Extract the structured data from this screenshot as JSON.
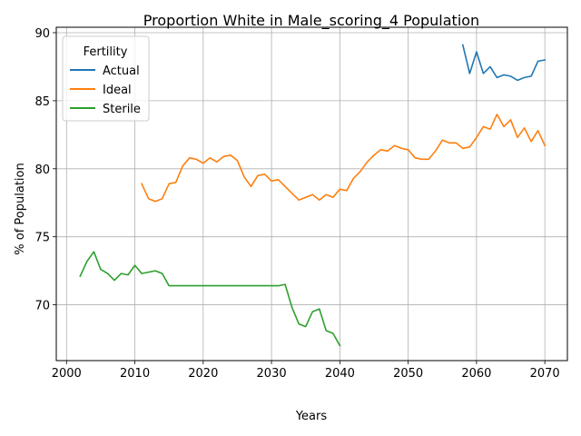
{
  "chart_data": {
    "type": "line",
    "title": "Proportion White in Male_scoring_4 Population",
    "xlabel": "Years",
    "ylabel": "% of Population",
    "xlim": [
      1998.5,
      2073.3
    ],
    "ylim": [
      65.9,
      90.4
    ],
    "x_ticks": [
      2000,
      2010,
      2020,
      2030,
      2040,
      2050,
      2060,
      2070
    ],
    "y_ticks": [
      70,
      75,
      80,
      85,
      90
    ],
    "grid": true,
    "legend": {
      "title": "Fertility",
      "position": "upper-left"
    },
    "series": [
      {
        "name": "Actual",
        "color": "#1f77b4",
        "x": [
          2058,
          2059,
          2060,
          2061,
          2062,
          2063,
          2064,
          2065,
          2066,
          2067,
          2068,
          2069,
          2070
        ],
        "y": [
          89.1,
          87.0,
          88.6,
          87.0,
          87.5,
          86.7,
          86.9,
          86.8,
          86.5,
          86.7,
          86.8,
          87.9,
          88.0
        ]
      },
      {
        "name": "Ideal",
        "color": "#ff7f0e",
        "x": [
          2011,
          2012,
          2013,
          2014,
          2015,
          2016,
          2017,
          2018,
          2019,
          2020,
          2021,
          2022,
          2023,
          2024,
          2025,
          2026,
          2027,
          2028,
          2029,
          2030,
          2031,
          2032,
          2033,
          2034,
          2035,
          2036,
          2037,
          2038,
          2039,
          2040,
          2041,
          2042,
          2043,
          2044,
          2045,
          2046,
          2047,
          2048,
          2049,
          2050,
          2051,
          2052,
          2053,
          2054,
          2055,
          2056,
          2057,
          2058,
          2059,
          2060,
          2061,
          2062,
          2063,
          2064,
          2065,
          2066,
          2067,
          2068,
          2069,
          2070
        ],
        "y": [
          78.9,
          77.8,
          77.6,
          77.8,
          78.9,
          79.0,
          80.2,
          80.8,
          80.7,
          80.4,
          80.8,
          80.5,
          80.9,
          81.0,
          80.6,
          79.4,
          78.7,
          79.5,
          79.6,
          79.1,
          79.2,
          78.7,
          78.2,
          77.7,
          77.9,
          78.1,
          77.7,
          78.1,
          77.9,
          78.5,
          78.4,
          79.3,
          79.8,
          80.5,
          81.0,
          81.4,
          81.3,
          81.7,
          81.5,
          81.4,
          80.8,
          80.7,
          80.7,
          81.3,
          82.1,
          81.9,
          81.9,
          81.5,
          81.6,
          82.3,
          83.1,
          82.9,
          84.0,
          83.1,
          83.6,
          82.3,
          83.0,
          82.0,
          82.8,
          81.7
        ]
      },
      {
        "name": "Sterile",
        "color": "#2ca02c",
        "x": [
          2002,
          2003,
          2004,
          2005,
          2006,
          2007,
          2008,
          2009,
          2010,
          2011,
          2012,
          2013,
          2014,
          2015,
          2016,
          2017,
          2018,
          2019,
          2020,
          2021,
          2022,
          2023,
          2024,
          2025,
          2026,
          2027,
          2028,
          2029,
          2030,
          2031,
          2032,
          2033,
          2034,
          2035,
          2036,
          2037,
          2038,
          2039,
          2040
        ],
        "y": [
          72.1,
          73.2,
          73.9,
          72.6,
          72.3,
          71.8,
          72.3,
          72.2,
          72.9,
          72.3,
          72.4,
          72.5,
          72.3,
          71.4,
          71.4,
          71.4,
          71.4,
          71.4,
          71.4,
          71.4,
          71.4,
          71.4,
          71.4,
          71.4,
          71.4,
          71.4,
          71.4,
          71.4,
          71.4,
          71.4,
          71.5,
          69.8,
          68.6,
          68.4,
          69.5,
          69.7,
          68.1,
          67.9,
          67.0
        ]
      }
    ]
  }
}
